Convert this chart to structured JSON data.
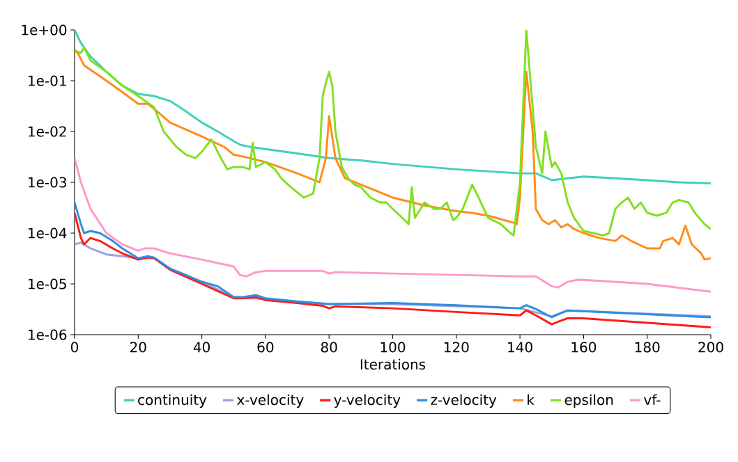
{
  "chart_data": {
    "type": "line",
    "xlabel": "Iterations",
    "log": "y",
    "grid": false,
    "legend": "bottom",
    "marker": "none",
    "line_style": "solid",
    "xlim": [
      0,
      200
    ],
    "xticks": [
      0,
      20,
      40,
      60,
      80,
      100,
      120,
      140,
      160,
      180,
      200
    ],
    "ylim": [
      1e-06,
      1
    ],
    "yticks": [
      {
        "value": 1,
        "label": "1e+00"
      },
      {
        "value": 0.1,
        "label": "1e-01"
      },
      {
        "value": 0.01,
        "label": "1e-02"
      },
      {
        "value": 0.001,
        "label": "1e-03"
      },
      {
        "value": 0.0001,
        "label": "1e-04"
      },
      {
        "value": 1e-05,
        "label": "1e-05"
      },
      {
        "value": 1e-06,
        "label": "1e-06"
      }
    ],
    "series": [
      {
        "name": "continuity",
        "color": "#40d0b8",
        "x": [
          0,
          2,
          5,
          10,
          15,
          20,
          25,
          30,
          35,
          40,
          45,
          50,
          52,
          55,
          60,
          70,
          80,
          90,
          100,
          120,
          140,
          145,
          150,
          155,
          160,
          170,
          180,
          190,
          200
        ],
        "values": [
          1.0,
          0.55,
          0.3,
          0.15,
          0.08,
          0.055,
          0.05,
          0.04,
          0.025,
          0.015,
          0.01,
          0.0065,
          0.0055,
          0.005,
          0.0045,
          0.0037,
          0.003,
          0.0027,
          0.0023,
          0.0018,
          0.0015,
          0.0015,
          0.0011,
          0.0012,
          0.0013,
          0.0012,
          0.0011,
          0.001,
          0.00095
        ]
      },
      {
        "name": "x-velocity",
        "color": "#a0a0e0",
        "x": [
          0,
          2,
          5,
          10,
          15,
          20,
          25,
          30,
          40,
          50,
          60,
          80,
          100,
          140,
          150,
          155,
          200
        ],
        "values": [
          6e-05,
          6.5e-05,
          5e-05,
          3.8e-05,
          3.5e-05,
          3.2e-05,
          3.2e-05,
          2e-05,
          1.1e-05,
          5.5e-06,
          5e-06,
          4e-06,
          4e-06,
          3.3e-06,
          2.3e-06,
          3e-06,
          2.3e-06
        ]
      },
      {
        "name": "y-velocity",
        "color": "#ff1a1a",
        "x": [
          0,
          2,
          3,
          5,
          8,
          12,
          15,
          20,
          23,
          25,
          30,
          40,
          50,
          53,
          57,
          60,
          70,
          78,
          80,
          82,
          100,
          120,
          140,
          142,
          145,
          150,
          152,
          155,
          160,
          200
        ],
        "values": [
          0.00025,
          8e-05,
          6e-05,
          8e-05,
          7e-05,
          5e-05,
          4e-05,
          3e-05,
          3.3e-05,
          3.2e-05,
          1.9e-05,
          1e-05,
          5.2e-06,
          5.2e-06,
          5.5e-06,
          4.8e-06,
          4.2e-06,
          3.7e-06,
          3.3e-06,
          3.6e-06,
          3.3e-06,
          2.8e-06,
          2.4e-06,
          3e-06,
          2.4e-06,
          1.6e-06,
          1.8e-06,
          2.1e-06,
          2.1e-06,
          1.4e-06
        ]
      },
      {
        "name": "z-velocity",
        "color": "#2e8ee0",
        "x": [
          0,
          2,
          3,
          5,
          8,
          12,
          15,
          20,
          23,
          25,
          30,
          40,
          45,
          50,
          53,
          57,
          60,
          70,
          80,
          100,
          120,
          140,
          142,
          145,
          150,
          152,
          155,
          160,
          200
        ],
        "values": [
          0.0004,
          0.00015,
          0.0001,
          0.00011,
          0.0001,
          7e-05,
          5e-05,
          3.2e-05,
          3.5e-05,
          3.3e-05,
          2e-05,
          1.1e-05,
          9e-06,
          5.5e-06,
          5.5e-06,
          6e-06,
          5.2e-06,
          4.5e-06,
          4e-06,
          4.2e-06,
          3.8e-06,
          3.3e-06,
          3.8e-06,
          3.2e-06,
          2.2e-06,
          2.5e-06,
          3e-06,
          2.9e-06,
          2.2e-06
        ]
      },
      {
        "name": "k",
        "color": "#ff8c1a",
        "x": [
          0,
          1,
          3,
          10,
          15,
          20,
          23,
          25,
          30,
          40,
          47,
          50,
          55,
          60,
          70,
          77,
          79,
          80,
          82,
          85,
          90,
          100,
          110,
          120,
          125,
          130,
          138,
          139,
          140,
          142,
          144,
          145,
          147,
          149,
          151,
          153,
          155,
          157,
          160,
          165,
          170,
          172,
          175,
          180,
          184,
          185,
          188,
          190,
          192,
          194,
          197,
          198,
          200
        ],
        "values": [
          0.4,
          0.35,
          0.2,
          0.1,
          0.06,
          0.035,
          0.035,
          0.028,
          0.015,
          0.008,
          0.005,
          0.0035,
          0.003,
          0.0025,
          0.0015,
          0.001,
          0.003,
          0.02,
          0.003,
          0.0012,
          0.0009,
          0.0005,
          0.00035,
          0.00027,
          0.00025,
          0.00022,
          0.00016,
          0.00015,
          0.0005,
          0.15,
          0.01,
          0.0003,
          0.00018,
          0.00015,
          0.00018,
          0.00013,
          0.00015,
          0.00012,
          0.0001,
          8e-05,
          7e-05,
          9e-05,
          7e-05,
          5e-05,
          5e-05,
          7e-05,
          8e-05,
          6e-05,
          0.00014,
          6e-05,
          4e-05,
          3e-05,
          3.2e-05
        ]
      },
      {
        "name": "epsilon",
        "color": "#80e020",
        "x": [
          0,
          2,
          3,
          5,
          10,
          15,
          20,
          25,
          28,
          32,
          35,
          38,
          40,
          43,
          46,
          48,
          50,
          53,
          55,
          56,
          57,
          60,
          63,
          65,
          68,
          72,
          75,
          77,
          78,
          79,
          80,
          81,
          82,
          84,
          86,
          88,
          90,
          93,
          96,
          98,
          100,
          103,
          105,
          106,
          107,
          110,
          113,
          115,
          117,
          119,
          120,
          122,
          125,
          127,
          130,
          134,
          137,
          138,
          140,
          142,
          145,
          147,
          148,
          150,
          151,
          153,
          155,
          157,
          160,
          163,
          166,
          168,
          170,
          172,
          174,
          176,
          178,
          180,
          183,
          186,
          188,
          190,
          193,
          195,
          198,
          200
        ],
        "values": [
          0.4,
          0.35,
          0.45,
          0.25,
          0.15,
          0.08,
          0.05,
          0.03,
          0.01,
          0.005,
          0.0035,
          0.003,
          0.004,
          0.007,
          0.003,
          0.0018,
          0.002,
          0.002,
          0.0018,
          0.006,
          0.002,
          0.0025,
          0.0018,
          0.0012,
          0.0008,
          0.0005,
          0.0006,
          0.003,
          0.05,
          0.09,
          0.15,
          0.08,
          0.01,
          0.002,
          0.0012,
          0.0009,
          0.0008,
          0.0005,
          0.0004,
          0.0004,
          0.0003,
          0.0002,
          0.00015,
          0.0008,
          0.0002,
          0.0004,
          0.0003,
          0.0003,
          0.0004,
          0.00018,
          0.0002,
          0.0003,
          0.0009,
          0.0005,
          0.0002,
          0.00015,
          0.0001,
          9e-05,
          0.001,
          1.0,
          0.005,
          0.0015,
          0.01,
          0.002,
          0.0025,
          0.0015,
          0.0004,
          0.0002,
          0.00011,
          0.0001,
          9e-05,
          0.0001,
          0.0003,
          0.0004,
          0.0005,
          0.0003,
          0.0004,
          0.00025,
          0.00022,
          0.00025,
          0.0004,
          0.00045,
          0.0004,
          0.00025,
          0.00015,
          0.00012
        ]
      },
      {
        "name": "vf-",
        "color": "#ff99cc",
        "x": [
          0,
          2,
          5,
          10,
          15,
          20,
          22,
          25,
          30,
          40,
          50,
          52,
          54,
          57,
          60,
          70,
          78,
          80,
          82,
          100,
          120,
          140,
          145,
          150,
          152,
          155,
          158,
          160,
          180,
          200
        ],
        "values": [
          0.003,
          0.001,
          0.0003,
          0.0001,
          6e-05,
          4.5e-05,
          5e-05,
          5e-05,
          4e-05,
          3e-05,
          2.2e-05,
          1.5e-05,
          1.4e-05,
          1.7e-05,
          1.8e-05,
          1.8e-05,
          1.8e-05,
          1.6e-05,
          1.7e-05,
          1.6e-05,
          1.5e-05,
          1.4e-05,
          1.4e-05,
          9e-06,
          8.5e-06,
          1.1e-05,
          1.2e-05,
          1.2e-05,
          1e-05,
          7e-06
        ]
      }
    ]
  }
}
